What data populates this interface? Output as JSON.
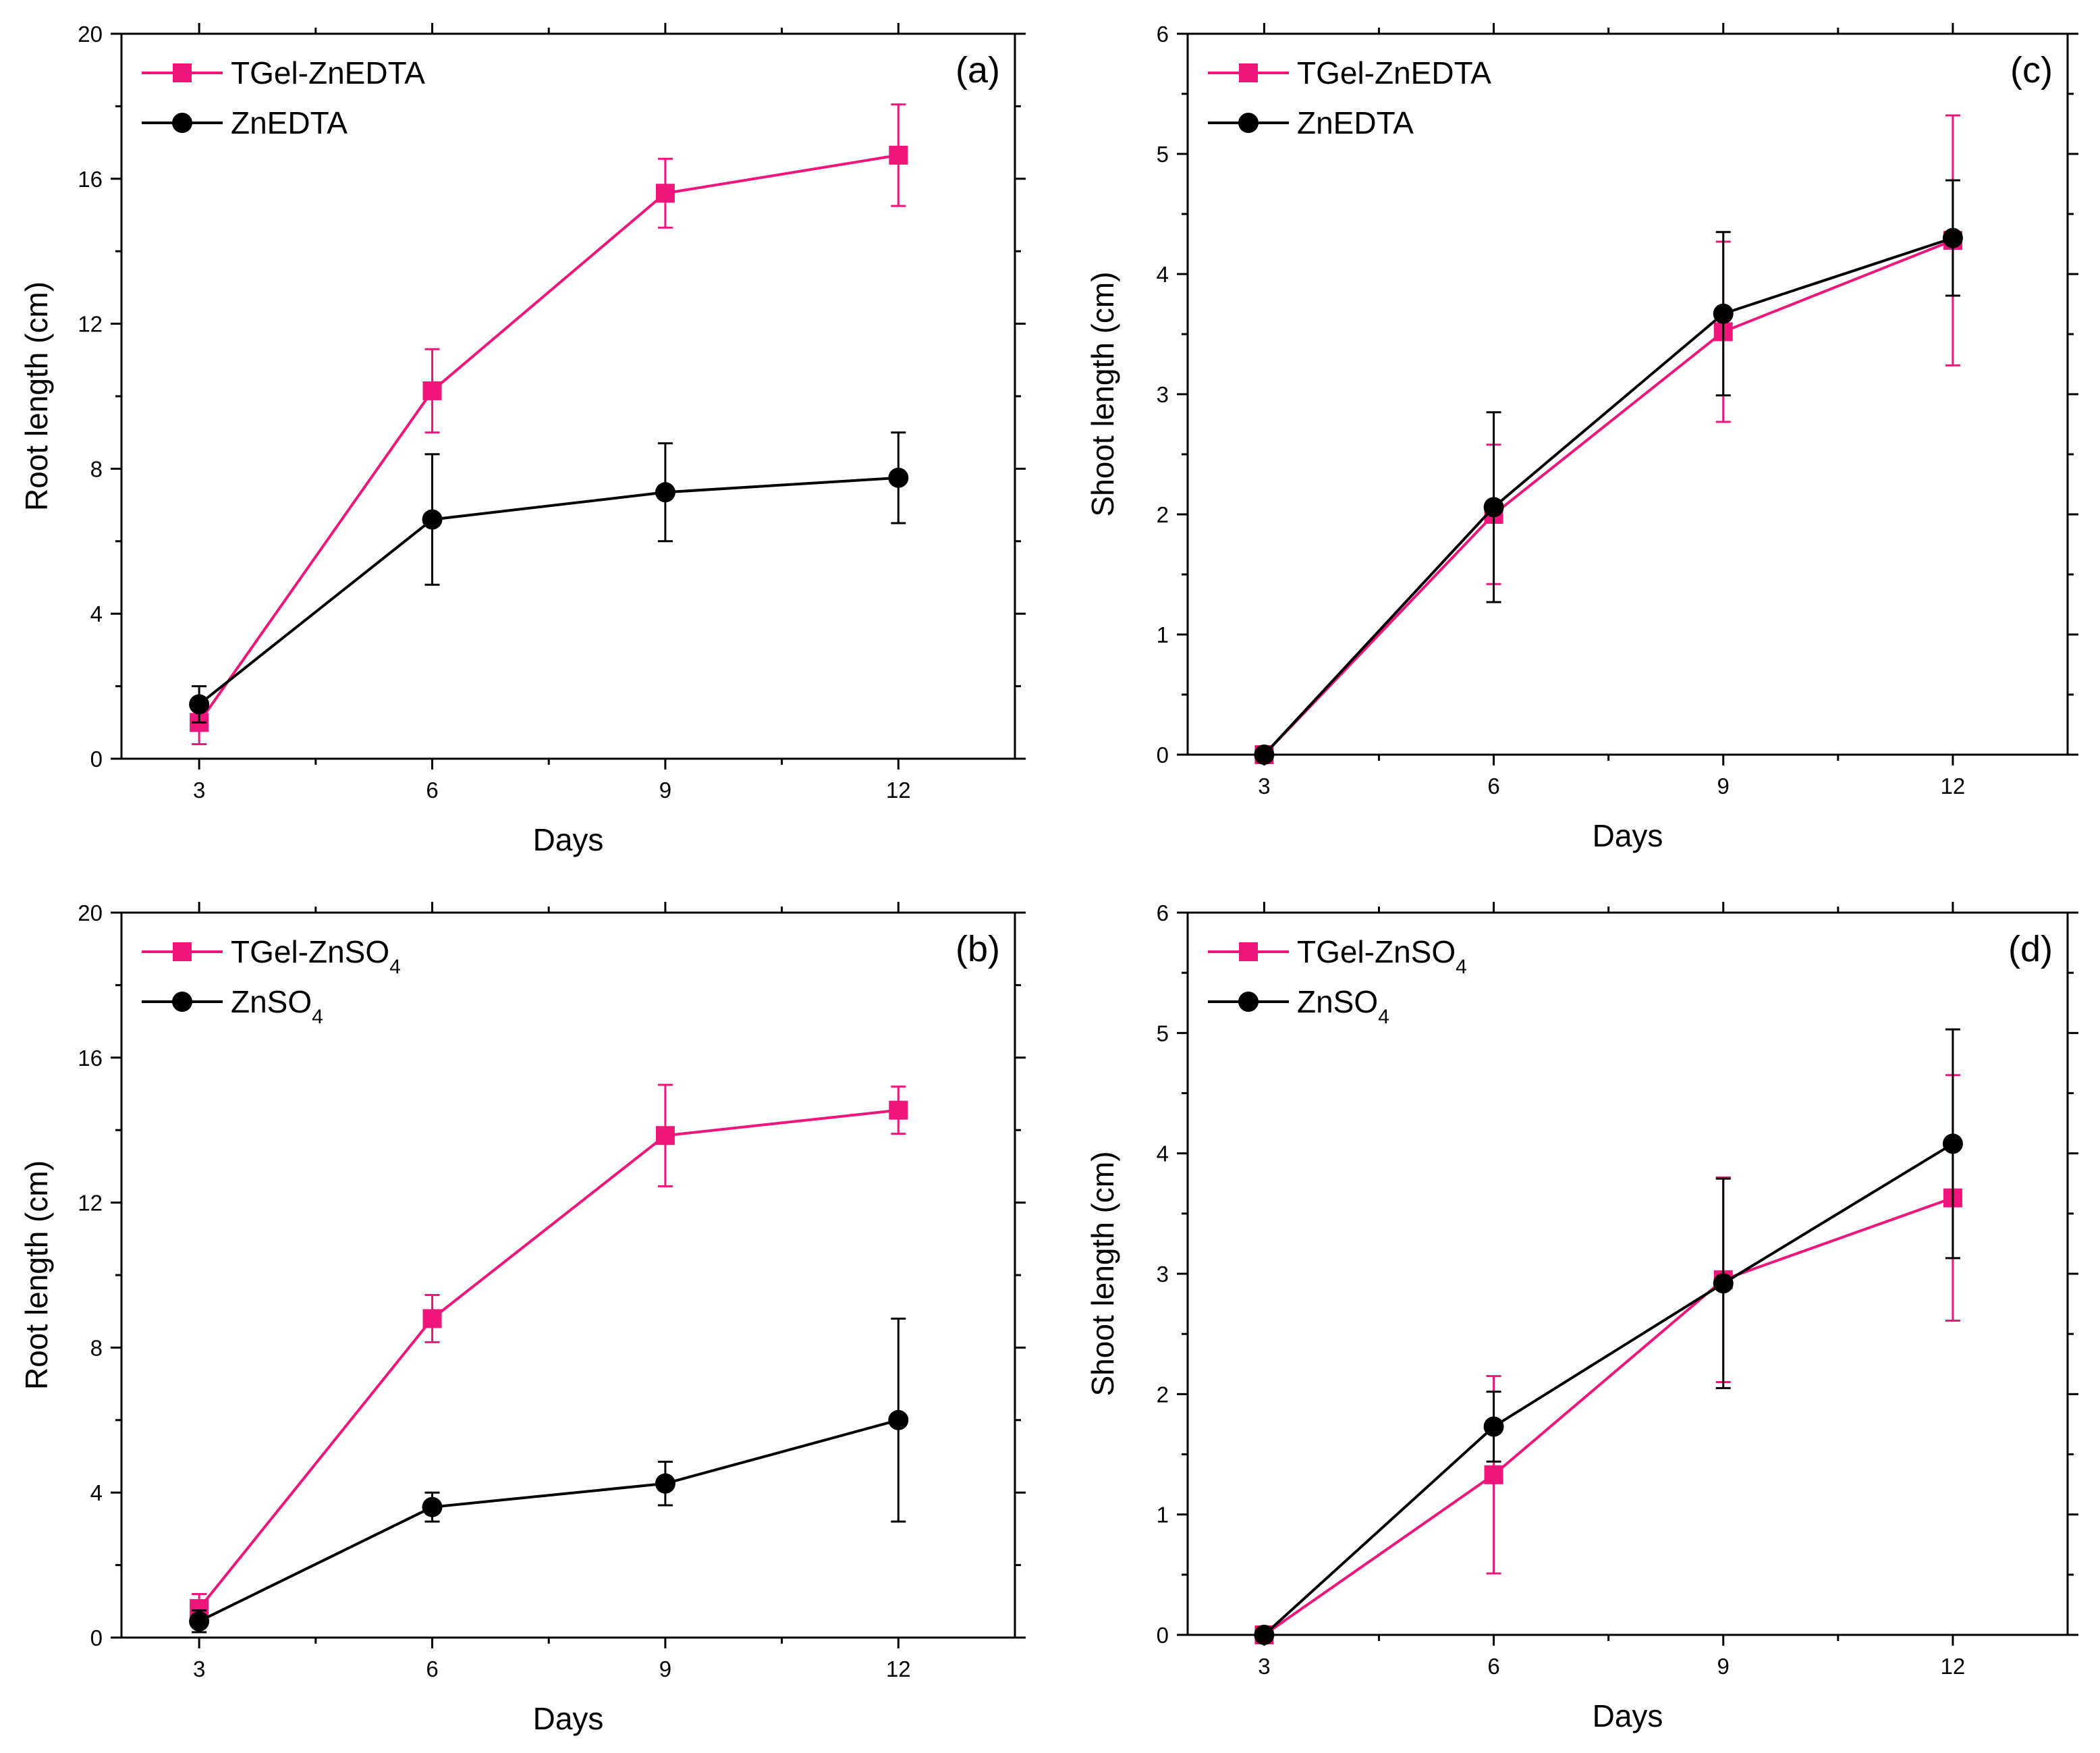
{
  "colors": {
    "pink": "#f0157a",
    "black": "#000000",
    "axis": "#000000"
  },
  "chart_data": [
    {
      "panel": "(a)",
      "type": "line",
      "xlabel": "Days",
      "ylabel": "Root length (cm)",
      "x": [
        3,
        6,
        9,
        12
      ],
      "xticks": [
        3,
        6,
        9,
        12
      ],
      "ylim": [
        0,
        20
      ],
      "yticks": [
        0,
        4,
        8,
        12,
        16,
        20
      ],
      "legend_location": "top-left",
      "series": [
        {
          "name": "TGel-ZnEDTA",
          "name_main": "TGel-ZnEDTA",
          "name_sub": "",
          "color": "#f0157a",
          "marker": "square",
          "values": [
            1.0,
            10.15,
            15.6,
            16.65
          ],
          "errors": [
            0.6,
            1.15,
            0.95,
            1.4
          ]
        },
        {
          "name": "ZnEDTA",
          "name_main": "ZnEDTA",
          "name_sub": "",
          "color": "#000000",
          "marker": "circle",
          "values": [
            1.5,
            6.6,
            7.35,
            7.75
          ],
          "errors": [
            0.5,
            1.8,
            1.35,
            1.25
          ]
        }
      ]
    },
    {
      "panel": "(c)",
      "type": "line",
      "xlabel": "Days",
      "ylabel": "Shoot length (cm)",
      "x": [
        3,
        6,
        9,
        12
      ],
      "xticks": [
        3,
        6,
        9,
        12
      ],
      "ylim": [
        0,
        6
      ],
      "yticks": [
        0,
        1,
        2,
        3,
        4,
        5,
        6
      ],
      "legend_location": "top-left",
      "series": [
        {
          "name": "TGel-ZnEDTA",
          "name_main": "TGel-ZnEDTA",
          "name_sub": "",
          "color": "#f0157a",
          "marker": "square",
          "values": [
            0.0,
            2.0,
            3.52,
            4.28
          ],
          "errors": [
            0.0,
            0.58,
            0.75,
            1.04
          ]
        },
        {
          "name": "ZnEDTA",
          "name_main": "ZnEDTA",
          "name_sub": "",
          "color": "#000000",
          "marker": "circle",
          "values": [
            0.0,
            2.06,
            3.67,
            4.3
          ],
          "errors": [
            0.0,
            0.79,
            0.68,
            0.48
          ]
        }
      ]
    },
    {
      "panel": "(b)",
      "type": "line",
      "xlabel": "Days",
      "ylabel": "Root length (cm)",
      "x": [
        3,
        6,
        9,
        12
      ],
      "xticks": [
        3,
        6,
        9,
        12
      ],
      "ylim": [
        0,
        20
      ],
      "yticks": [
        0,
        4,
        8,
        12,
        16,
        20
      ],
      "legend_location": "top-left",
      "series": [
        {
          "name": "TGel-ZnSO4",
          "name_main": "TGel-ZnSO",
          "name_sub": "4",
          "color": "#f0157a",
          "marker": "square",
          "values": [
            0.8,
            8.8,
            13.85,
            14.55
          ],
          "errors": [
            0.4,
            0.65,
            1.4,
            0.65
          ]
        },
        {
          "name": "ZnSO4",
          "name_main": "ZnSO",
          "name_sub": "4",
          "color": "#000000",
          "marker": "circle",
          "values": [
            0.45,
            3.6,
            4.25,
            6.0
          ],
          "errors": [
            0.3,
            0.4,
            0.6,
            2.8
          ]
        }
      ]
    },
    {
      "panel": "(d)",
      "type": "line",
      "xlabel": "Days",
      "ylabel": "Shoot length (cm)",
      "x": [
        3,
        6,
        9,
        12
      ],
      "xticks": [
        3,
        6,
        9,
        12
      ],
      "ylim": [
        0,
        6
      ],
      "yticks": [
        0,
        1,
        2,
        3,
        4,
        5,
        6
      ],
      "legend_location": "top-left",
      "series": [
        {
          "name": "TGel-ZnSO4",
          "name_main": "TGel-ZnSO",
          "name_sub": "4",
          "color": "#f0157a",
          "marker": "square",
          "values": [
            0.0,
            1.33,
            2.95,
            3.63
          ],
          "errors": [
            0.0,
            0.82,
            0.85,
            1.02
          ]
        },
        {
          "name": "ZnSO4",
          "name_main": "ZnSO",
          "name_sub": "4",
          "color": "#000000",
          "marker": "circle",
          "values": [
            0.0,
            1.73,
            2.92,
            4.08
          ],
          "errors": [
            0.0,
            0.29,
            0.87,
            0.95
          ]
        }
      ]
    }
  ]
}
